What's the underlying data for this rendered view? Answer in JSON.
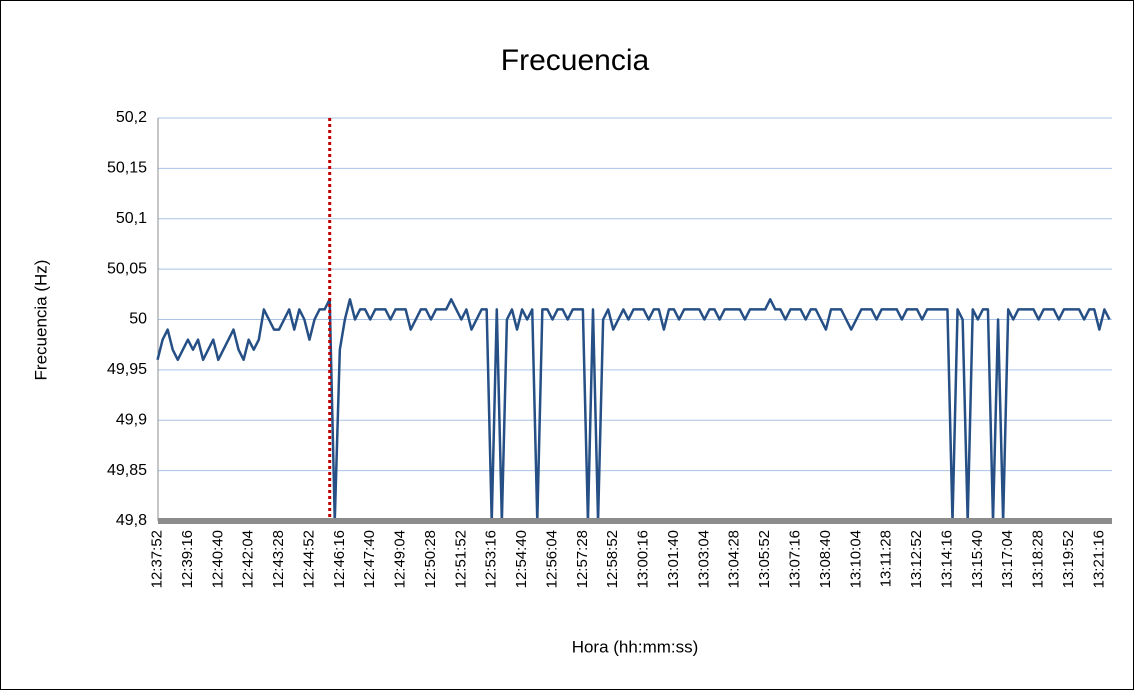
{
  "chart_data": {
    "type": "line",
    "title": "Frecuencia",
    "x_label": "Hora (hh:mm:ss)",
    "y_label": "Frecuencia (Hz)",
    "categories": [
      "12:37:52",
      null,
      null,
      null,
      null,
      null,
      "12:39:16",
      null,
      null,
      null,
      null,
      null,
      "12:40:40",
      null,
      null,
      null,
      null,
      null,
      "12:42:04",
      null,
      null,
      null,
      null,
      null,
      "12:43:28",
      null,
      null,
      null,
      null,
      null,
      "12:44:52",
      null,
      null,
      null,
      null,
      null,
      "12:46:16",
      null,
      null,
      null,
      null,
      null,
      "12:47:40",
      null,
      null,
      null,
      null,
      null,
      "12:49:04",
      null,
      null,
      null,
      null,
      null,
      "12:50:28",
      null,
      null,
      null,
      null,
      null,
      "12:51:52",
      null,
      null,
      null,
      null,
      null,
      "12:53:16",
      null,
      null,
      null,
      null,
      null,
      "12:54:40",
      null,
      null,
      null,
      null,
      null,
      "12:56:04",
      null,
      null,
      null,
      null,
      null,
      "12:57:28",
      null,
      null,
      null,
      null,
      null,
      "12:58:52",
      null,
      null,
      null,
      null,
      null,
      "13:00:16",
      null,
      null,
      null,
      null,
      null,
      "13:01:40",
      null,
      null,
      null,
      null,
      null,
      "13:03:04",
      null,
      null,
      null,
      null,
      null,
      "13:04:28",
      null,
      null,
      null,
      null,
      null,
      "13:05:52",
      null,
      null,
      null,
      null,
      null,
      "13:07:16",
      null,
      null,
      null,
      null,
      null,
      "13:08:40",
      null,
      null,
      null,
      null,
      null,
      "13:10:04",
      null,
      null,
      null,
      null,
      null,
      "13:11:28",
      null,
      null,
      null,
      null,
      null,
      "13:12:52",
      null,
      null,
      null,
      null,
      null,
      "13:14:16",
      null,
      null,
      null,
      null,
      null,
      "13:15:40",
      null,
      null,
      null,
      null,
      null,
      "13:17:04",
      null,
      null,
      null,
      null,
      null,
      "13:18:28",
      null,
      null,
      null,
      null,
      null,
      "13:19:52",
      null,
      null,
      null,
      null,
      null,
      "13:21:16",
      null,
      null
    ],
    "series": [
      {
        "name": "Frecuencia",
        "color": "#254f85",
        "values": [
          49.96,
          49.98,
          49.99,
          49.97,
          49.96,
          49.97,
          49.98,
          49.97,
          49.98,
          49.96,
          49.97,
          49.98,
          49.96,
          49.97,
          49.98,
          49.99,
          49.97,
          49.96,
          49.98,
          49.97,
          49.98,
          50.01,
          50.0,
          49.99,
          49.99,
          50.0,
          50.01,
          49.99,
          50.01,
          50.0,
          49.98,
          50.0,
          50.01,
          50.01,
          50.02,
          49.8,
          49.97,
          50.0,
          50.02,
          50.0,
          50.01,
          50.01,
          50.0,
          50.01,
          50.01,
          50.01,
          50.0,
          50.01,
          50.01,
          50.01,
          49.99,
          50.0,
          50.01,
          50.01,
          50.0,
          50.01,
          50.01,
          50.01,
          50.02,
          50.01,
          50.0,
          50.01,
          49.99,
          50.0,
          50.01,
          50.01,
          49.8,
          50.01,
          49.8,
          50.0,
          50.01,
          49.99,
          50.01,
          50.0,
          50.01,
          49.8,
          50.01,
          50.01,
          50.0,
          50.01,
          50.01,
          50.0,
          50.01,
          50.01,
          50.01,
          49.8,
          50.01,
          49.8,
          50.0,
          50.01,
          49.99,
          50.0,
          50.01,
          50.0,
          50.01,
          50.01,
          50.01,
          50.0,
          50.01,
          50.01,
          49.99,
          50.01,
          50.01,
          50.0,
          50.01,
          50.01,
          50.01,
          50.01,
          50.0,
          50.01,
          50.01,
          50.0,
          50.01,
          50.01,
          50.01,
          50.01,
          50.0,
          50.01,
          50.01,
          50.01,
          50.01,
          50.02,
          50.01,
          50.01,
          50.0,
          50.01,
          50.01,
          50.01,
          50.0,
          50.01,
          50.01,
          50.0,
          49.99,
          50.01,
          50.01,
          50.01,
          50.0,
          49.99,
          50.0,
          50.01,
          50.01,
          50.01,
          50.0,
          50.01,
          50.01,
          50.01,
          50.01,
          50.0,
          50.01,
          50.01,
          50.01,
          50.0,
          50.01,
          50.01,
          50.01,
          50.01,
          50.01,
          49.8,
          50.01,
          50.0,
          49.8,
          50.01,
          50.0,
          50.01,
          50.01,
          49.8,
          50.0,
          49.8,
          50.01,
          50.0,
          50.01,
          50.01,
          50.01,
          50.01,
          50.0,
          50.01,
          50.01,
          50.01,
          50.0,
          50.01,
          50.01,
          50.01,
          50.01,
          50.0,
          50.01,
          50.01,
          49.99,
          50.01,
          50.0
        ]
      }
    ],
    "vline": {
      "index": 34,
      "color": "#c00000"
    },
    "ylim": [
      49.8,
      50.2
    ],
    "yticks": [
      {
        "value": 49.8,
        "label": "49,8"
      },
      {
        "value": 49.85,
        "label": "49,85"
      },
      {
        "value": 49.9,
        "label": "49,9"
      },
      {
        "value": 49.95,
        "label": "49,95"
      },
      50,
      {
        "value": 50.05,
        "label": "50,05"
      },
      {
        "value": 50.1,
        "label": "50,1"
      },
      {
        "value": 50.15,
        "label": "50,15"
      },
      {
        "value": 50.2,
        "label": "50,2"
      }
    ],
    "grid": true
  }
}
